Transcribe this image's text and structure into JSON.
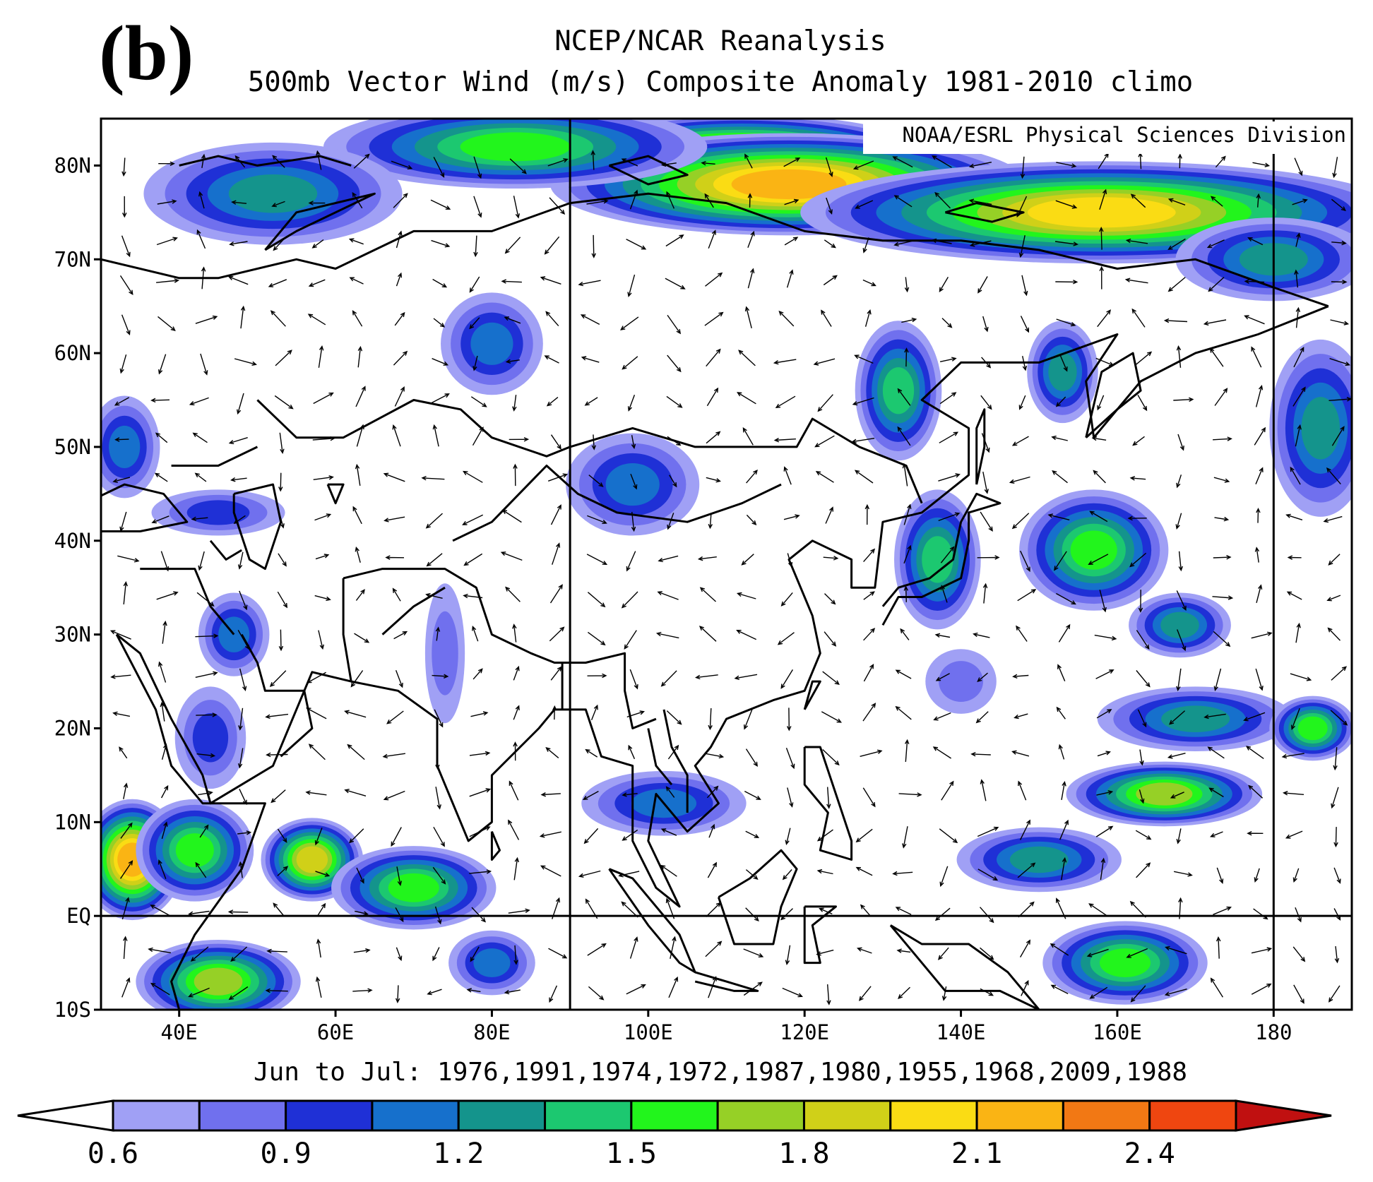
{
  "panel_label": "(b)",
  "title_line1": "NCEP/NCAR Reanalysis",
  "title_line2": "500mb Vector Wind (m/s) Composite Anomaly 1981-2010 climo",
  "credit": "NOAA/ESRL Physical Sciences Division",
  "period_text": "Jun to Jul: 1976,1991,1974,1972,1987,1980,1955,1968,2009,1988",
  "map": {
    "lon_range": [
      30,
      190
    ],
    "lat_range": [
      -10,
      85
    ],
    "y_ticks": [
      {
        "lat": 80,
        "label": "80N"
      },
      {
        "lat": 70,
        "label": "70N"
      },
      {
        "lat": 60,
        "label": "60N"
      },
      {
        "lat": 50,
        "label": "50N"
      },
      {
        "lat": 40,
        "label": "40N"
      },
      {
        "lat": 30,
        "label": "30N"
      },
      {
        "lat": 20,
        "label": "20N"
      },
      {
        "lat": 10,
        "label": "10N"
      },
      {
        "lat": 0,
        "label": "EQ"
      },
      {
        "lat": -10,
        "label": "10S"
      }
    ],
    "x_ticks": [
      {
        "lon": 40,
        "label": "40E"
      },
      {
        "lon": 60,
        "label": "60E"
      },
      {
        "lon": 80,
        "label": "80E"
      },
      {
        "lon": 100,
        "label": "100E"
      },
      {
        "lon": 120,
        "label": "120E"
      },
      {
        "lon": 140,
        "label": "140E"
      },
      {
        "lon": 160,
        "label": "160E"
      },
      {
        "lon": 180,
        "label": "180"
      }
    ],
    "reference_lines": {
      "meridians": [
        90,
        180
      ],
      "parallels": [
        0
      ]
    },
    "anomaly_blobs": [
      {
        "lon": 112,
        "lat": 80,
        "rx": 26,
        "ry": 5,
        "v": 2.45
      },
      {
        "lon": 118,
        "lat": 78,
        "rx": 30,
        "ry": 5,
        "v": 2.1
      },
      {
        "lon": 158,
        "lat": 75,
        "rx": 38,
        "ry": 5,
        "v": 1.95
      },
      {
        "lon": 83,
        "lat": 82,
        "rx": 24,
        "ry": 4,
        "v": 1.65
      },
      {
        "lon": 52,
        "lat": 77,
        "rx": 16,
        "ry": 5,
        "v": 1.25
      },
      {
        "lon": 180,
        "lat": 70,
        "rx": 12,
        "ry": 4,
        "v": 1.3
      },
      {
        "lon": 80,
        "lat": 61,
        "rx": 6,
        "ry": 5,
        "v": 1.05
      },
      {
        "lon": 132,
        "lat": 56,
        "rx": 5,
        "ry": 7,
        "v": 1.35
      },
      {
        "lon": 153,
        "lat": 58,
        "rx": 4,
        "ry": 5,
        "v": 1.3
      },
      {
        "lon": 186,
        "lat": 52,
        "rx": 6,
        "ry": 9,
        "v": 1.2
      },
      {
        "lon": 98,
        "lat": 46,
        "rx": 8,
        "ry": 5,
        "v": 1.05
      },
      {
        "lon": 137,
        "lat": 38,
        "rx": 5,
        "ry": 7,
        "v": 1.45
      },
      {
        "lon": 157,
        "lat": 39,
        "rx": 9,
        "ry": 6,
        "v": 1.65
      },
      {
        "lon": 168,
        "lat": 31,
        "rx": 6,
        "ry": 3,
        "v": 1.3
      },
      {
        "lon": 170,
        "lat": 21,
        "rx": 12,
        "ry": 3,
        "v": 1.2
      },
      {
        "lon": 185,
        "lat": 20,
        "rx": 5,
        "ry": 3,
        "v": 1.55
      },
      {
        "lon": 166,
        "lat": 13,
        "rx": 12,
        "ry": 3,
        "v": 1.7
      },
      {
        "lon": 150,
        "lat": 6,
        "rx": 10,
        "ry": 3,
        "v": 1.3
      },
      {
        "lon": 161,
        "lat": -5,
        "rx": 10,
        "ry": 4,
        "v": 1.65
      },
      {
        "lon": 102,
        "lat": 12,
        "rx": 10,
        "ry": 3,
        "v": 1.05
      },
      {
        "lon": 47,
        "lat": 30,
        "rx": 4,
        "ry": 4,
        "v": 1.05
      },
      {
        "lon": 44,
        "lat": 19,
        "rx": 4,
        "ry": 5,
        "v": 1.0
      },
      {
        "lon": 45,
        "lat": 43,
        "rx": 8,
        "ry": 2,
        "v": 1.0
      },
      {
        "lon": 33,
        "lat": 50,
        "rx": 4,
        "ry": 5,
        "v": 1.05
      },
      {
        "lon": 34,
        "lat": 6,
        "rx": 6,
        "ry": 6,
        "v": 2.15
      },
      {
        "lon": 42,
        "lat": 7,
        "rx": 7,
        "ry": 5,
        "v": 1.65
      },
      {
        "lon": 57,
        "lat": 6,
        "rx": 6,
        "ry": 4,
        "v": 1.9
      },
      {
        "lon": 70,
        "lat": 3,
        "rx": 10,
        "ry": 4,
        "v": 1.5
      },
      {
        "lon": 45,
        "lat": -7,
        "rx": 10,
        "ry": 4,
        "v": 1.7
      },
      {
        "lon": 80,
        "lat": -5,
        "rx": 5,
        "ry": 3,
        "v": 1.1
      },
      {
        "lon": 74,
        "lat": 28,
        "rx": 2,
        "ry": 7,
        "v": 0.75
      },
      {
        "lon": 140,
        "lat": 25,
        "rx": 4,
        "ry": 3,
        "v": 0.8
      }
    ]
  },
  "colorbar": {
    "labels": [
      "0.6",
      "0.9",
      "1.2",
      "1.5",
      "1.8",
      "2.1",
      "2.4"
    ],
    "colors": [
      "#ffffff",
      "#a0a0f5",
      "#7070ee",
      "#1f30d6",
      "#1670cc",
      "#14948c",
      "#1cc870",
      "#22f51c",
      "#96d026",
      "#d0d018",
      "#fadc14",
      "#fab414",
      "#f27814",
      "#ef4610",
      "#c01010"
    ]
  }
}
